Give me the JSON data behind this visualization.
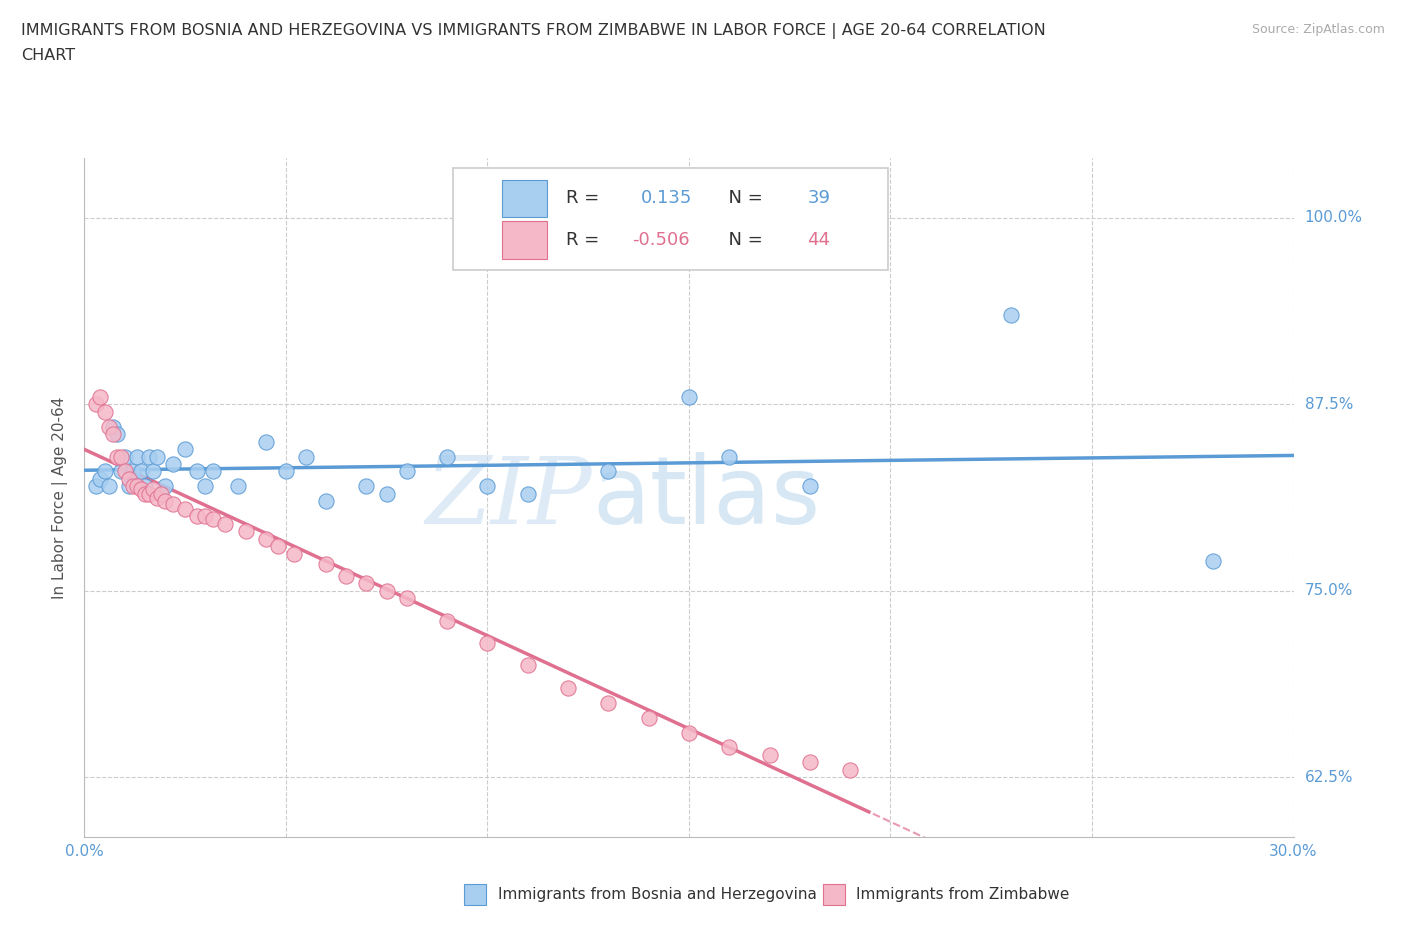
{
  "title_line1": "IMMIGRANTS FROM BOSNIA AND HERZEGOVINA VS IMMIGRANTS FROM ZIMBABWE IN LABOR FORCE | AGE 20-64 CORRELATION",
  "title_line2": "CHART",
  "source": "Source: ZipAtlas.com",
  "ylabel_label": "In Labor Force | Age 20-64",
  "xlim": [
    0.0,
    0.3
  ],
  "ylim": [
    0.585,
    1.04
  ],
  "bosnia_color": "#a8cef0",
  "bosnia_color_dark": "#5b9bd5",
  "zimbabwe_color": "#f5b8c8",
  "zimbabwe_color_dark": "#e07090",
  "bosnia_R": 0.135,
  "bosnia_N": 39,
  "zimbabwe_R": -0.506,
  "zimbabwe_N": 44,
  "bosnia_scatter_x": [
    0.003,
    0.004,
    0.005,
    0.006,
    0.007,
    0.008,
    0.009,
    0.01,
    0.011,
    0.012,
    0.013,
    0.014,
    0.015,
    0.016,
    0.017,
    0.018,
    0.02,
    0.022,
    0.025,
    0.028,
    0.03,
    0.032,
    0.038,
    0.045,
    0.05,
    0.055,
    0.06,
    0.07,
    0.075,
    0.08,
    0.09,
    0.1,
    0.11,
    0.13,
    0.15,
    0.16,
    0.18,
    0.23,
    0.28
  ],
  "bosnia_scatter_y": [
    0.82,
    0.825,
    0.83,
    0.82,
    0.86,
    0.855,
    0.83,
    0.84,
    0.82,
    0.83,
    0.84,
    0.83,
    0.82,
    0.84,
    0.83,
    0.84,
    0.82,
    0.835,
    0.845,
    0.83,
    0.82,
    0.83,
    0.82,
    0.85,
    0.83,
    0.84,
    0.81,
    0.82,
    0.815,
    0.83,
    0.84,
    0.82,
    0.815,
    0.83,
    0.88,
    0.84,
    0.82,
    0.935,
    0.77
  ],
  "zimbabwe_scatter_x": [
    0.003,
    0.004,
    0.005,
    0.006,
    0.007,
    0.008,
    0.009,
    0.01,
    0.011,
    0.012,
    0.013,
    0.014,
    0.015,
    0.016,
    0.017,
    0.018,
    0.019,
    0.02,
    0.022,
    0.025,
    0.028,
    0.03,
    0.032,
    0.035,
    0.04,
    0.045,
    0.048,
    0.052,
    0.06,
    0.065,
    0.07,
    0.075,
    0.08,
    0.09,
    0.1,
    0.11,
    0.12,
    0.13,
    0.14,
    0.15,
    0.16,
    0.17,
    0.18,
    0.19
  ],
  "zimbabwe_scatter_y": [
    0.875,
    0.88,
    0.87,
    0.86,
    0.855,
    0.84,
    0.84,
    0.83,
    0.825,
    0.82,
    0.82,
    0.818,
    0.815,
    0.815,
    0.818,
    0.812,
    0.815,
    0.81,
    0.808,
    0.805,
    0.8,
    0.8,
    0.798,
    0.795,
    0.79,
    0.785,
    0.78,
    0.775,
    0.768,
    0.76,
    0.755,
    0.75,
    0.745,
    0.73,
    0.715,
    0.7,
    0.685,
    0.675,
    0.665,
    0.655,
    0.645,
    0.64,
    0.635,
    0.63
  ],
  "watermark_zip": "ZIP",
  "watermark_atlas": "atlas",
  "yticks": [
    0.625,
    0.75,
    0.875,
    1.0
  ],
  "ytick_labels": [
    "62.5%",
    "75.0%",
    "87.5%",
    "100.0%"
  ],
  "xtick_positions": [
    0.0,
    0.05,
    0.1,
    0.15,
    0.2,
    0.25,
    0.3
  ],
  "grid_color": "#cccccc",
  "bottom_legend_bosnia": "Immigrants from Bosnia and Herzegovina",
  "bottom_legend_zimbabwe": "Immigrants from Zimbabwe"
}
